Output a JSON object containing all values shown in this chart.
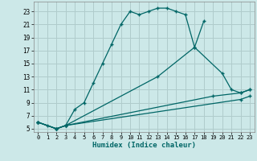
{
  "xlabel": "Humidex (Indice chaleur)",
  "bg_color": "#cce8e8",
  "grid_color": "#b0cccc",
  "line_color": "#006666",
  "xlim": [
    -0.5,
    23.5
  ],
  "ylim": [
    4.5,
    24.5
  ],
  "xticks": [
    0,
    1,
    2,
    3,
    4,
    5,
    6,
    7,
    8,
    9,
    10,
    11,
    12,
    13,
    14,
    15,
    16,
    17,
    18,
    19,
    20,
    21,
    22,
    23
  ],
  "yticks": [
    5,
    7,
    9,
    11,
    13,
    15,
    17,
    19,
    21,
    23
  ],
  "curves": [
    {
      "x": [
        0,
        1,
        2,
        3,
        4,
        5,
        6,
        7,
        8,
        9,
        10,
        11,
        12,
        13,
        14,
        15,
        16,
        17,
        18
      ],
      "y": [
        6,
        5.5,
        5,
        5.5,
        8,
        9,
        12,
        15,
        18,
        21,
        23,
        22.5,
        23,
        23.5,
        23.5,
        23,
        22.5,
        17.5,
        21.5
      ]
    },
    {
      "x": [
        0,
        2,
        3,
        13,
        17,
        20,
        21,
        22,
        23
      ],
      "y": [
        6,
        5,
        5.5,
        13,
        17.5,
        13.5,
        11,
        10.5,
        11
      ]
    },
    {
      "x": [
        0,
        2,
        3,
        19,
        22,
        23
      ],
      "y": [
        6,
        5,
        5.5,
        10,
        10.5,
        11
      ]
    },
    {
      "x": [
        0,
        2,
        3,
        22,
        23
      ],
      "y": [
        6,
        5,
        5.5,
        9.5,
        10
      ]
    }
  ]
}
